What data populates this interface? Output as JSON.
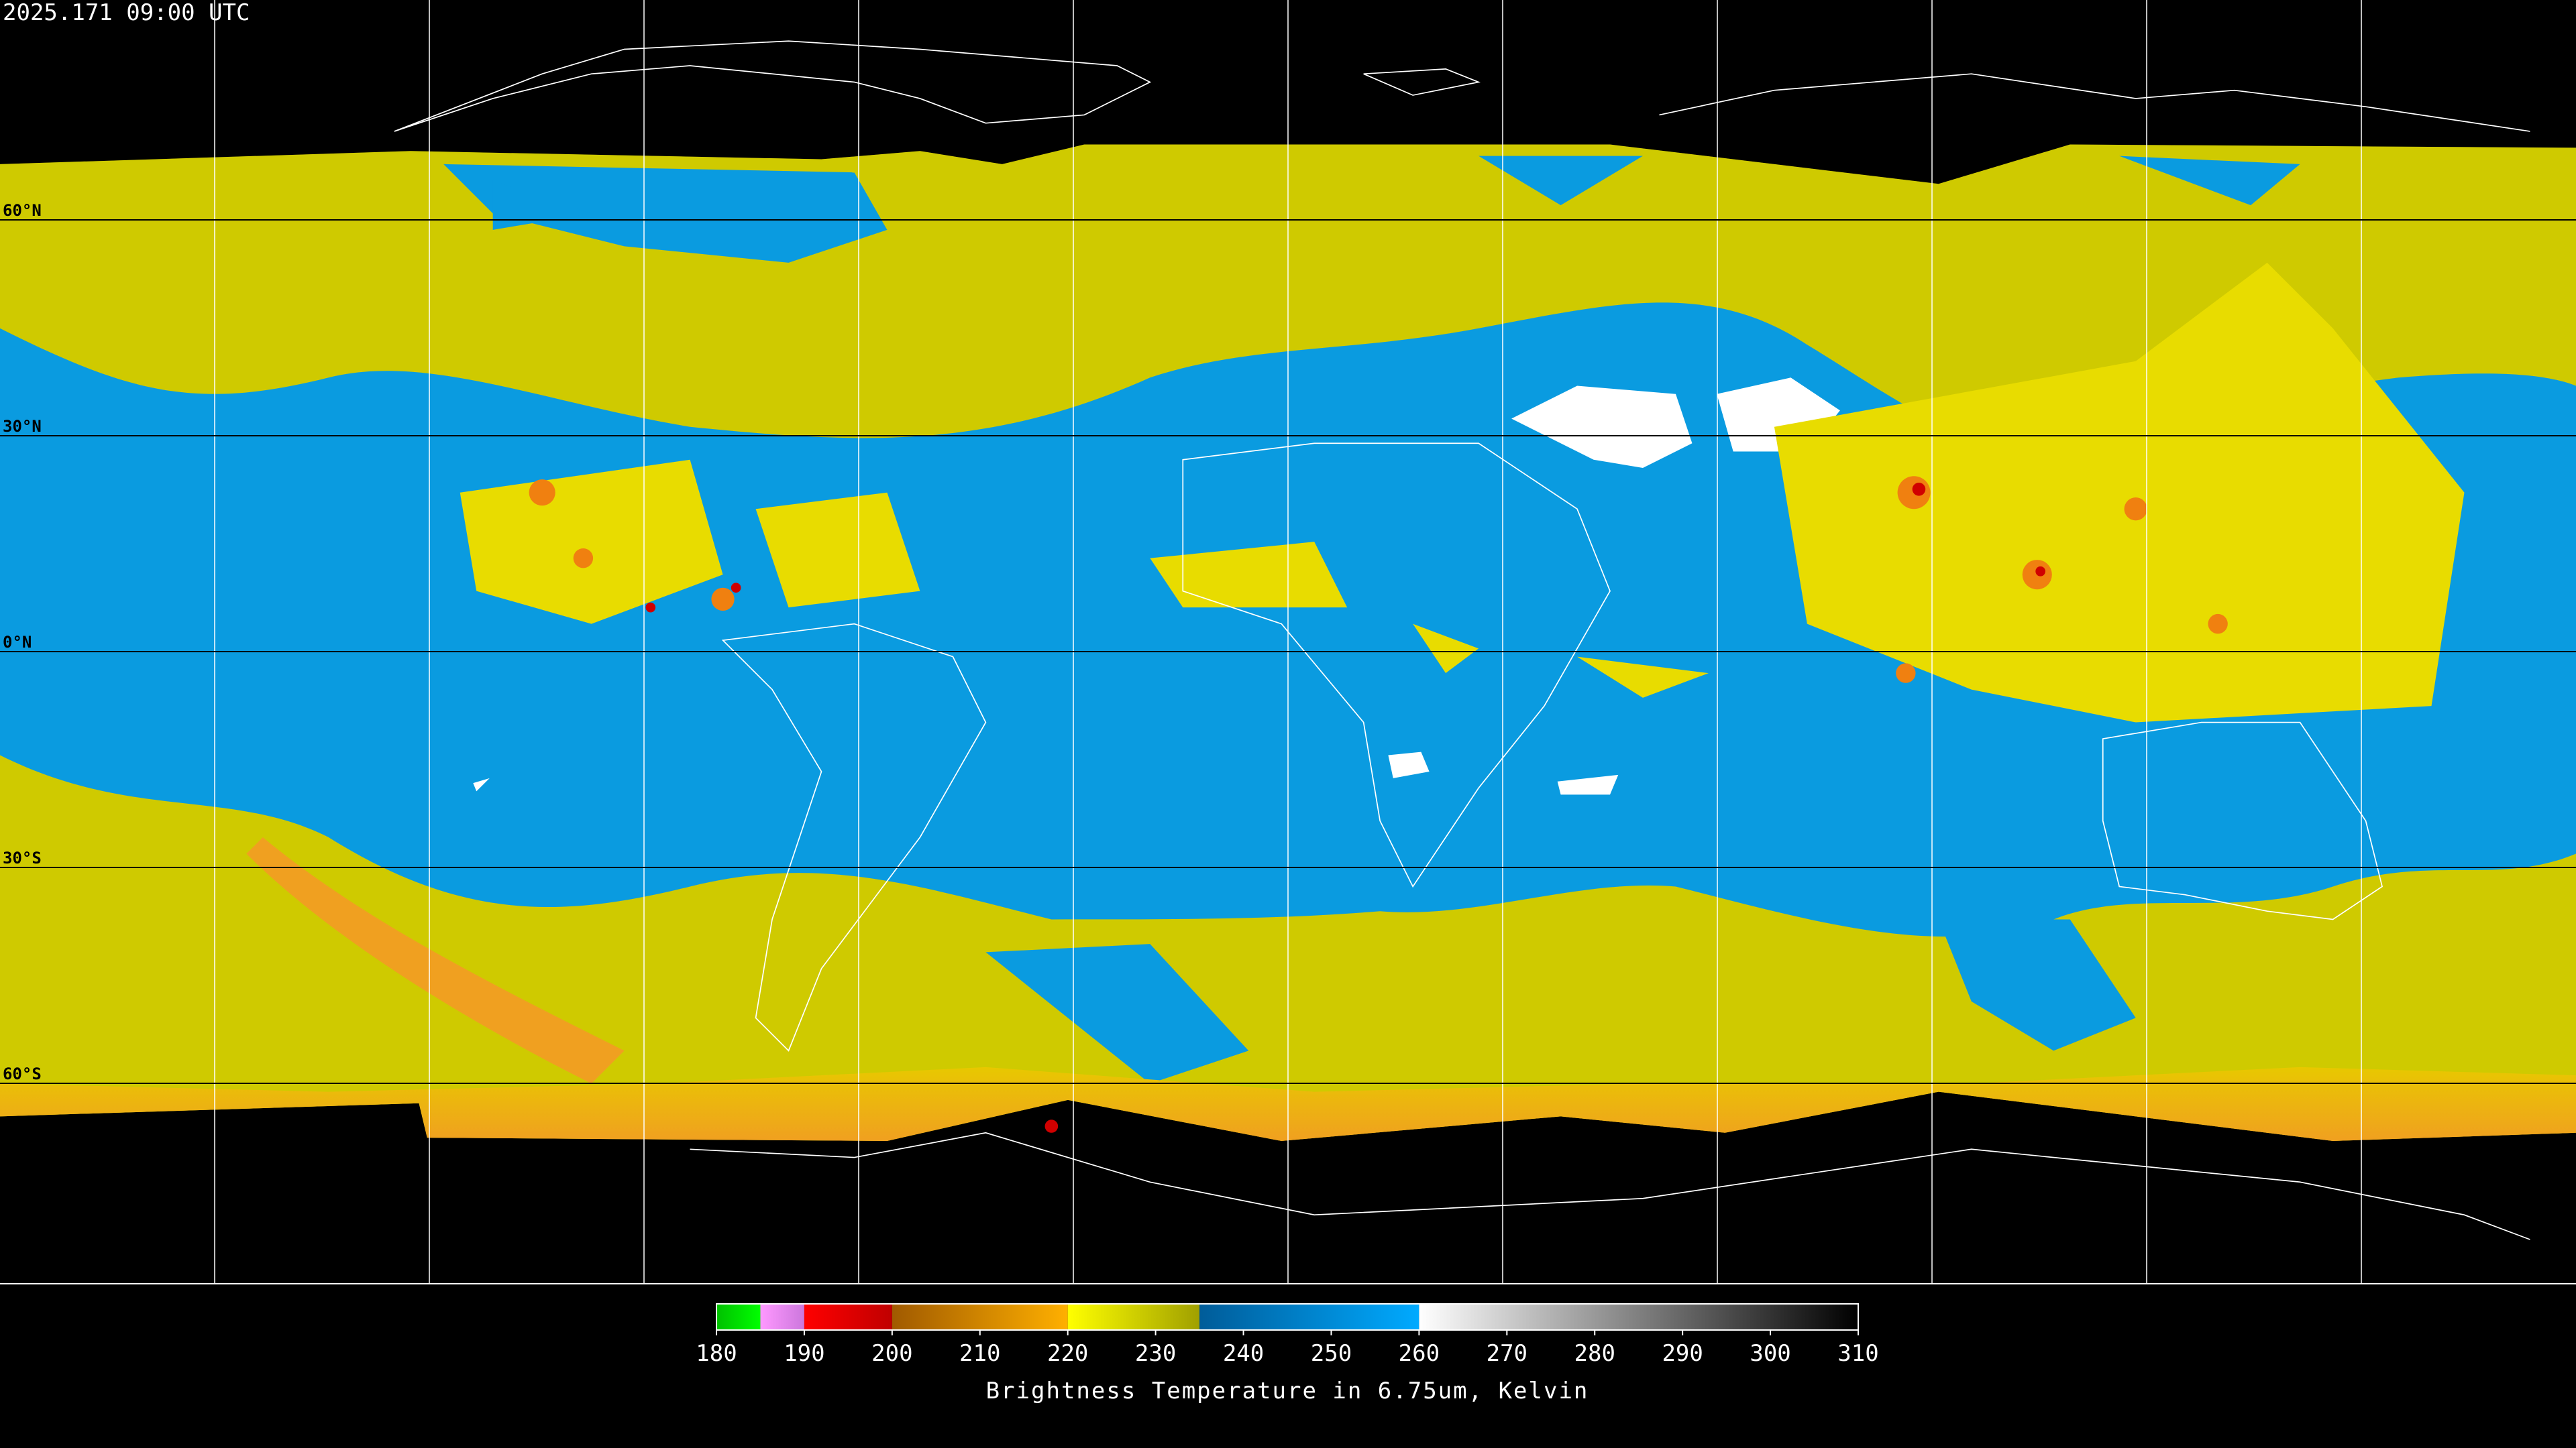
{
  "header": {
    "title": "2025.171 09:00 UTC"
  },
  "latitudes": [
    {
      "value": 60,
      "label": "60°N"
    },
    {
      "value": 30,
      "label": "30°N"
    },
    {
      "value": 0,
      "label": "0°N"
    },
    {
      "value": -30,
      "label": "30°S"
    },
    {
      "value": -60,
      "label": "60°S"
    }
  ],
  "colorbar": {
    "label": "Brightness Temperature in 6.75um, Kelvin",
    "lim": [
      180,
      310
    ],
    "ticks": [
      180,
      190,
      200,
      210,
      220,
      230,
      240,
      250,
      260,
      270,
      280,
      290,
      300,
      310
    ],
    "segments": [
      {
        "from": 180,
        "to": 185,
        "colors": [
          "#00c000",
          "#00ff00"
        ]
      },
      {
        "from": 185,
        "to": 190,
        "colors": [
          "#ff99ff",
          "#cc77dd"
        ]
      },
      {
        "from": 190,
        "to": 200,
        "colors": [
          "#ff0000",
          "#c00000"
        ]
      },
      {
        "from": 200,
        "to": 220,
        "colors": [
          "#a05a00",
          "#ffb000"
        ]
      },
      {
        "from": 220,
        "to": 235,
        "colors": [
          "#ffff00",
          "#a0a000"
        ]
      },
      {
        "from": 235,
        "to": 260,
        "colors": [
          "#005c99",
          "#00aaff"
        ]
      },
      {
        "from": 260,
        "to": 310,
        "colors": [
          "#ffffff",
          "#000000"
        ]
      }
    ]
  }
}
